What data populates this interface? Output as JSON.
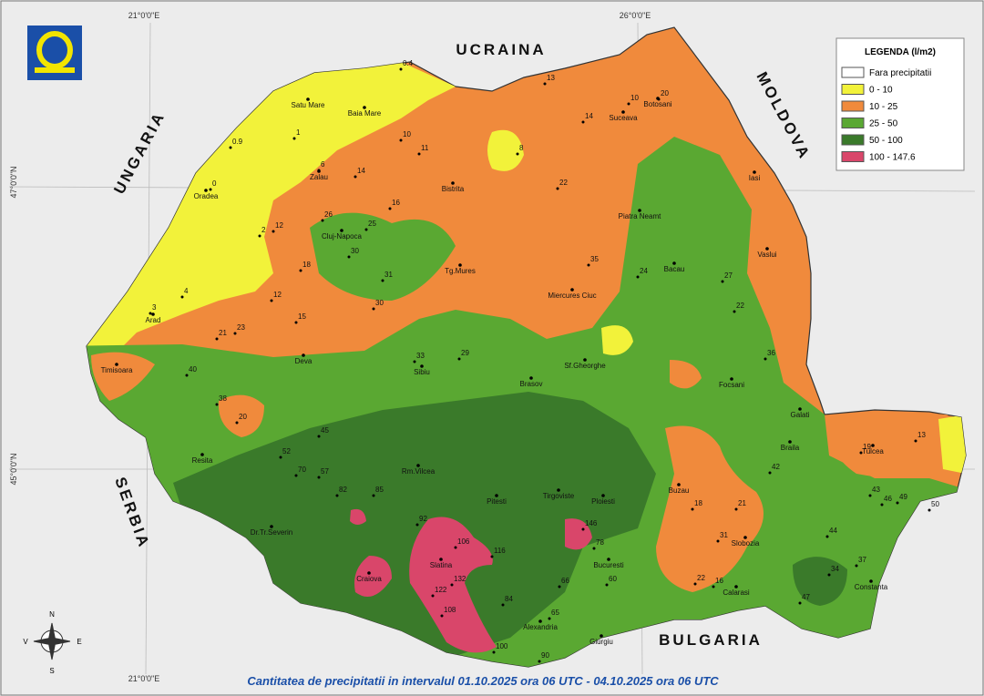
{
  "title": "Cantitatea de precipitatii in intervalul 01.10.2025 ora 06 UTC - 04.10.2025 ora 06 UTC",
  "coordinates": {
    "top_left": "21°0'0\"E",
    "top_right": "26°0'0\"E",
    "bottom_left": "21°0'0\"E",
    "left_upper": "47°0'0\"N",
    "left_lower": "45°0'0\"N"
  },
  "legend": {
    "title": "LEGENDA (l/m2)",
    "items": [
      {
        "label": "Fara precipitatii",
        "color": "#ffffff"
      },
      {
        "label": " 0 - 10",
        "color": "#f2f23a"
      },
      {
        "label": "10 - 25",
        "color": "#f08a3c"
      },
      {
        "label": "25 - 50",
        "color": "#5aa832"
      },
      {
        "label": "50 - 100",
        "color": "#3a7a2a"
      },
      {
        "label": "100 - 147.6",
        "color": "#d9466a"
      }
    ]
  },
  "countries": [
    "UCRAINA",
    "MOLDOVA",
    "UNGARIA",
    "SERBIA",
    "BULGARIA"
  ],
  "compass": [
    "N",
    "S",
    "E",
    "V"
  ],
  "cities": [
    "Satu Mare",
    "Baia Mare",
    "Zalau",
    "Oradea",
    "Bistrita",
    "Suceava",
    "Botosani",
    "Iasi",
    "Piatra Neamt",
    "Bacau",
    "Vaslui",
    "Cluj-Napoca",
    "Tg.Mures",
    "Miercures Ciuc",
    "Sf.Gheorghe",
    "Brasov",
    "Sibiu",
    "Deva",
    "Arad",
    "Timisoara",
    "Resita",
    "Dr.Tr.Severin",
    "Craiova",
    "Slatina",
    "Rm.Vilcea",
    "Pitesti",
    "Tirgoviste",
    "Ploiesti",
    "Bucuresti",
    "Alexandria",
    "Giurgiu",
    "Slobozia",
    "Calarasi",
    "Constanta",
    "Buzau",
    "Focsani",
    "Galati",
    "Braila",
    "Tulcea"
  ],
  "stations": [
    0.4,
    1,
    0,
    0.9,
    6,
    2,
    4,
    3,
    14,
    11,
    10,
    8,
    13,
    20,
    22,
    14,
    10,
    12,
    16,
    26,
    25,
    30,
    18,
    12,
    15,
    23,
    21,
    35,
    24,
    27,
    22,
    30,
    31,
    40,
    33,
    29,
    38,
    20,
    45,
    52,
    57,
    70,
    82,
    85,
    92,
    106,
    116,
    132,
    122,
    108,
    100,
    146,
    78,
    60,
    66,
    84,
    65,
    90,
    43,
    46,
    49,
    31,
    18,
    21,
    22,
    16,
    34,
    37,
    44,
    47,
    50,
    19,
    13,
    42,
    36
  ]
}
